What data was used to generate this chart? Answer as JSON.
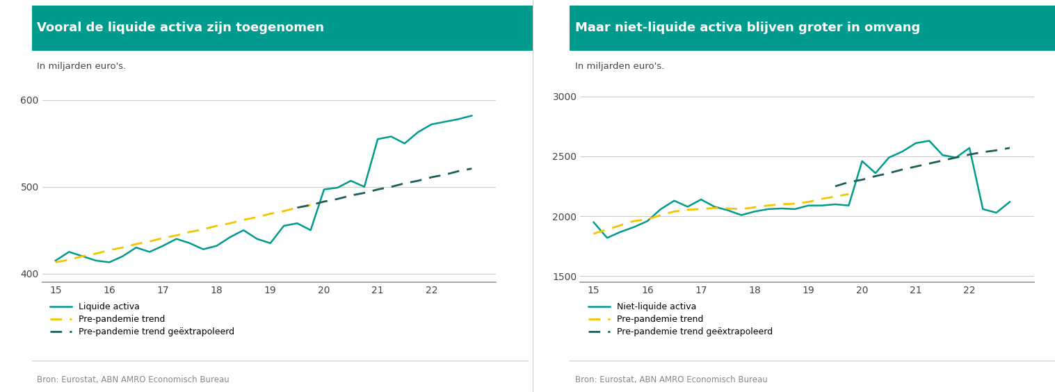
{
  "left_title": "Vooral de liquide activa zijn toegenomen",
  "right_title": "Maar niet-liquide activa blijven groter in omvang",
  "subtitle": "In miljarden euro's.",
  "source": "Bron: Eurostat, ABN AMRO Economisch Bureau",
  "header_color": "#009B8D",
  "header_text_color": "#ffffff",
  "background_color": "#ffffff",
  "text_color": "#333333",
  "source_color": "#888888",
  "teal_color": "#009B8D",
  "yellow_color": "#F5C400",
  "dark_teal_color": "#1B5E5A",
  "left_x": [
    15.0,
    15.25,
    15.5,
    15.75,
    16.0,
    16.25,
    16.5,
    16.75,
    17.0,
    17.25,
    17.5,
    17.75,
    18.0,
    18.25,
    18.5,
    18.75,
    19.0,
    19.25,
    19.5,
    19.75,
    20.0,
    20.25,
    20.5,
    20.75,
    21.0,
    21.25,
    21.5,
    21.75,
    22.0,
    22.25,
    22.5,
    22.75
  ],
  "left_liquid": [
    415,
    425,
    420,
    415,
    413,
    420,
    430,
    425,
    432,
    440,
    435,
    428,
    432,
    442,
    450,
    440,
    435,
    455,
    458,
    450,
    497,
    499,
    507,
    500,
    555,
    558,
    550,
    563,
    572,
    575,
    578,
    582
  ],
  "left_pre_trend_x": [
    15.0,
    15.25,
    15.5,
    15.75,
    16.0,
    16.25,
    16.5,
    16.75,
    17.0,
    17.25,
    17.5,
    17.75,
    18.0,
    18.25,
    18.5,
    18.75,
    19.0,
    19.25,
    19.5,
    19.75
  ],
  "left_pre_trend_y": [
    413,
    416,
    420,
    423,
    427,
    430,
    434,
    437,
    441,
    444,
    448,
    451,
    455,
    458,
    462,
    465,
    469,
    472,
    476,
    479
  ],
  "left_extrap_x": [
    19.5,
    19.75,
    20.0,
    20.25,
    20.5,
    20.75,
    21.0,
    21.25,
    21.5,
    21.75,
    22.0,
    22.25,
    22.5,
    22.75
  ],
  "left_extrap_y": [
    476,
    479,
    483,
    486,
    490,
    493,
    497,
    500,
    504,
    507,
    511,
    514,
    518,
    521
  ],
  "left_ylim": [
    390,
    625
  ],
  "left_yticks": [
    400,
    500,
    600
  ],
  "left_xticks": [
    15,
    16,
    17,
    18,
    19,
    20,
    21,
    22
  ],
  "right_x": [
    15.0,
    15.25,
    15.5,
    15.75,
    16.0,
    16.25,
    16.5,
    16.75,
    17.0,
    17.25,
    17.5,
    17.75,
    18.0,
    18.25,
    18.5,
    18.75,
    19.0,
    19.25,
    19.5,
    19.75,
    20.0,
    20.25,
    20.5,
    20.75,
    21.0,
    21.25,
    21.5,
    21.75,
    22.0,
    22.25,
    22.5,
    22.75
  ],
  "right_nonliquid": [
    1950,
    1820,
    1870,
    1910,
    1960,
    2060,
    2130,
    2080,
    2140,
    2080,
    2050,
    2010,
    2040,
    2060,
    2065,
    2060,
    2090,
    2090,
    2100,
    2090,
    2460,
    2360,
    2490,
    2540,
    2610,
    2630,
    2510,
    2490,
    2570,
    2060,
    2030,
    2120
  ],
  "right_pre_trend_x": [
    15.0,
    15.25,
    15.5,
    15.75,
    16.0,
    16.25,
    16.5,
    16.75,
    17.0,
    17.25,
    17.5,
    17.75,
    18.0,
    18.25,
    18.5,
    18.75,
    19.0,
    19.25,
    19.5,
    19.75
  ],
  "right_pre_trend_y": [
    1855,
    1890,
    1925,
    1960,
    1975,
    2010,
    2040,
    2055,
    2060,
    2070,
    2065,
    2060,
    2075,
    2090,
    2100,
    2105,
    2120,
    2145,
    2165,
    2185
  ],
  "right_extrap_x": [
    19.5,
    19.75,
    20.0,
    20.25,
    20.5,
    20.75,
    21.0,
    21.25,
    21.5,
    21.75,
    22.0,
    22.25,
    22.5,
    22.75
  ],
  "right_extrap_y": [
    2250,
    2285,
    2305,
    2335,
    2360,
    2390,
    2415,
    2440,
    2465,
    2490,
    2515,
    2535,
    2550,
    2570
  ],
  "right_ylim": [
    1450,
    3150
  ],
  "right_yticks": [
    1500,
    2000,
    2500,
    3000
  ],
  "right_xticks": [
    15,
    16,
    17,
    18,
    19,
    20,
    21,
    22
  ],
  "legend_liquid": "Liquide activa",
  "legend_nonliquid": "Niet-liquide activa",
  "legend_pre": "Pre-pandemie trend",
  "legend_extrap": "Pre-pandemie trend geëxtrapoleerd"
}
